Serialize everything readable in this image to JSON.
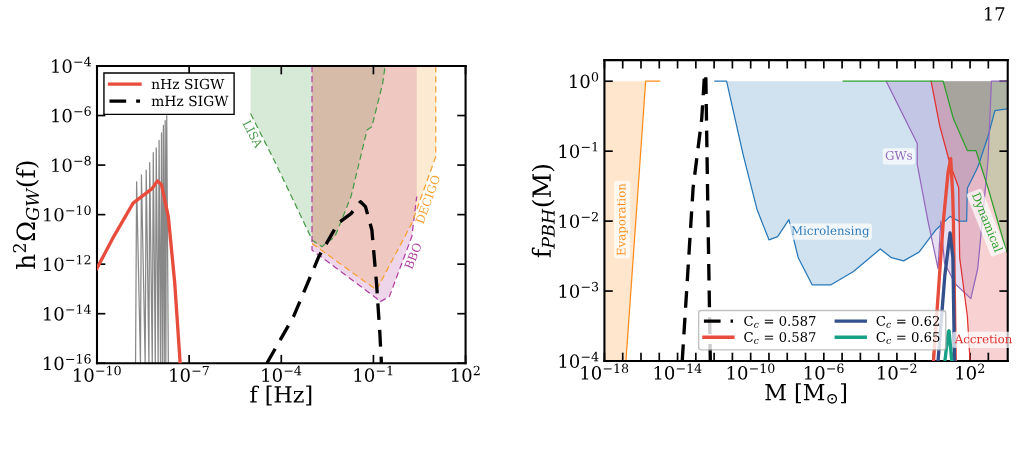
{
  "chart_data": [
    {
      "type": "line",
      "xlabel": "f [Hz]",
      "ylabel": "h$^{2}$Ω$_{GW}$(f)",
      "log": "xy",
      "grid": false,
      "legend": "top left",
      "xlim": [
        1e-10,
        100
      ],
      "ylim": [
        1e-16,
        0.0001
      ],
      "xticks": [
        {
          "value": 1e-10,
          "label": "10$^{−10}$"
        },
        {
          "value": 1e-07,
          "label": "10$^{−7}$"
        },
        {
          "value": 0.0001,
          "label": "10$^{−4}$"
        },
        {
          "value": 0.1,
          "label": "10$^{−1}$"
        },
        {
          "value": 100,
          "label": "10$^{2}$"
        }
      ],
      "yticks": [
        {
          "value": 1e-16,
          "label": "10$^{−16}$"
        },
        {
          "value": 1e-14,
          "label": "10$^{−14}$"
        },
        {
          "value": 1e-12,
          "label": "10$^{−12}$"
        },
        {
          "value": 1e-10,
          "label": "10$^{−10}$"
        },
        {
          "value": 1e-08,
          "label": "10$^{−8}$"
        },
        {
          "value": 1e-06,
          "label": "10$^{−6}$"
        },
        {
          "value": 0.0001,
          "label": "10$^{−4}$"
        }
      ],
      "series": [
        {
          "type": "line",
          "color": "#4a9a4a",
          "line_style": "dashed",
          "x": [
            1e-05,
            5.8e-05,
            0.00031,
            0.00102,
            0.0021,
            0.0056,
            0.0186,
            0.062,
            0.089,
            0.2,
            0.24
          ],
          "values": [
            1.2e-06,
            1.6e-08,
            2.1e-10,
            9.3e-12,
            5.1e-12,
            1.3e-11,
            5.4e-10,
            2.6e-07,
            3.5e-07,
            2e-05,
            0.0001
          ],
          "lower": [
            1.2e-06,
            1.6e-08,
            2.1e-10,
            9.3e-12,
            5.1e-12,
            1.3e-11,
            5.4e-10,
            2.6e-07,
            3.5e-07,
            2e-05,
            0.0001
          ],
          "upper": [
            0.0001,
            0.0001,
            0.0001,
            0.0001,
            0.0001,
            0.0001,
            0.0001,
            0.0001,
            0.0001,
            0.0001,
            0.0001
          ]
        },
        {
          "type": "line",
          "color": "#b040a0",
          "line_style": "dashed",
          "x": [
            0.001,
            0.001,
            0.126,
            0.162,
            0.33,
            1.78,
            2.57,
            2.57
          ],
          "values": [
            0.0001,
            3.7e-12,
            4.2e-14,
            3e-14,
            4.9e-14,
            1.3e-11,
            5.4e-10,
            null
          ],
          "lower": [
            0.0001,
            3.7e-12,
            4.2e-14,
            3e-14,
            4.9e-14,
            1.3e-11,
            5.4e-10,
            1e-07
          ],
          "upper": [
            0.0001,
            0.0001,
            0.0001,
            0.0001,
            0.0001,
            0.0001,
            0.0001,
            0.0001
          ]
        },
        {
          "type": "line",
          "color": "#f5a030",
          "line_style": "dashed",
          "x": [
            0.001,
            0.126,
            1.78,
            10.7,
            10.7
          ],
          "values": [
            6.9e-12,
            9.1e-14,
            4.5e-11,
            2.2e-08,
            0.0001
          ],
          "lower": [
            6.9e-12,
            9.1e-14,
            4.5e-11,
            2.2e-08,
            0.0001
          ],
          "upper": [
            0.0001,
            0.0001,
            0.0001,
            0.0001,
            0.0001
          ]
        },
        {
          "type": "line",
          "color": "#888888",
          "x": [
            1.8e-09,
            1.95e-09,
            2.6e-09,
            2.8e-09,
            3.7e-09,
            4e-09,
            4.9e-09,
            5.2e-09,
            6.3e-09,
            6.8e-09,
            7.9e-09,
            8.5e-09,
            9.8e-09,
            1.05e-08,
            1.17e-08,
            1.26e-08,
            1.35e-08,
            1.45e-08,
            1.55e-08,
            1.66e-08,
            1.74e-08,
            1.86e-08,
            2.1e-08
          ],
          "values": [
            1e-16,
            2.1e-09,
            1e-16,
            4e-09,
            1e-16,
            6.3e-09,
            1e-16,
            1.26e-08,
            1e-16,
            3.2e-08,
            1e-16,
            5e-08,
            1e-16,
            1e-07,
            1e-16,
            2e-07,
            1e-16,
            4e-07,
            1e-16,
            6.3e-07,
            1e-16,
            1e-06,
            1e-16
          ]
        },
        {
          "type": "line",
          "name": "nHz SIGW",
          "color": "#e74c3c",
          "line_style": "solid",
          "x": [
            1e-10,
            3.5e-10,
            1.5e-09,
            3.9e-09,
            6.3e-09,
            9.3e-09,
            1.26e-08,
            2.1e-08,
            3.4e-08,
            5.1e-08
          ],
          "values": [
            6.8e-13,
            1.3e-11,
            2.9e-10,
            7.2e-10,
            1.15e-09,
            2.3e-09,
            1.6e-09,
            8.3e-11,
            1.7e-13,
            1e-16
          ]
        },
        {
          "type": "line",
          "name": "mHz SIGW",
          "color": "#000000",
          "line_style": "dashed",
          "x": [
            3.4e-05,
            0.00025,
            0.00166,
            0.0071,
            0.0186,
            0.038,
            0.055,
            0.089,
            0.126,
            0.162,
            0.182
          ],
          "values": [
            1e-16,
            7.6e-15,
            2e-12,
            4.5e-11,
            1.1e-10,
            3.3e-10,
            2.1e-10,
            2.4e-11,
            1.7e-13,
            1.6e-15,
            1e-16
          ]
        }
      ],
      "annotations": [
        "LISA",
        "BBO",
        "DECIGO"
      ]
    },
    {
      "type": "line",
      "xlabel": "M [M$_{⊙}$]",
      "ylabel": "f$_{PBH}$(M)",
      "log": "xy",
      "grid": false,
      "legend": "bottom",
      "xlim": [
        1e-18,
        11500.0
      ],
      "ylim": [
        0.0001,
        2.0
      ],
      "xticks": [
        {
          "value": 1e-18,
          "label": "10$^{−18}$"
        },
        {
          "value": 1e-17,
          "label": null
        },
        {
          "value": 1e-16,
          "label": null
        },
        {
          "value": 1e-15,
          "label": null
        },
        {
          "value": 1e-14,
          "label": "10$^{−14}$"
        },
        {
          "value": 1e-13,
          "label": null
        },
        {
          "value": 1e-12,
          "label": null
        },
        {
          "value": 1e-11,
          "label": null
        },
        {
          "value": 1e-10,
          "label": "10$^{−10}$"
        },
        {
          "value": 1e-09,
          "label": null
        },
        {
          "value": 1e-08,
          "label": null
        },
        {
          "value": 1e-07,
          "label": null
        },
        {
          "value": 1e-06,
          "label": "10$^{−6}$"
        },
        {
          "value": 1e-05,
          "label": null
        },
        {
          "value": 0.0001,
          "label": null
        },
        {
          "value": 0.001,
          "label": null
        },
        {
          "value": 0.01,
          "label": "10$^{−2}$"
        },
        {
          "value": 0.1,
          "label": null
        },
        {
          "value": 1,
          "label": null
        },
        {
          "value": 10,
          "label": null
        },
        {
          "value": 100,
          "label": "10$^{2}$"
        },
        {
          "value": 1000,
          "label": null
        }
      ],
      "yticks": [
        {
          "value": 0.0001,
          "label": "10$^{−4}$"
        },
        {
          "value": 0.001,
          "label": "10$^{−3}$"
        },
        {
          "value": 0.01,
          "label": "10$^{−2}$"
        },
        {
          "value": 0.1,
          "label": "10$^{−1}$"
        },
        {
          "value": 1,
          "label": "10$^{0}$"
        }
      ],
      "series": [
        {
          "type": "line",
          "color": "#ff8c1a",
          "x": [
            1e-18,
            1.5e-17,
            1.8e-16,
            1.05e-15
          ],
          "values": [
            null,
            0.0001,
            1,
            1
          ],
          "lower": [
            0.0001,
            0.0001,
            1,
            1
          ],
          "upper": [
            1,
            1,
            1,
            1
          ]
        },
        {
          "type": "line",
          "color": "#2878b8",
          "x": [
            1.1e-12,
            4.8e-12,
            3.8e-11,
            2.2e-10,
            1e-09,
            3e-09,
            1.23e-08,
            4e-08,
            2.3e-07,
            2.5e-06,
            4.2e-05,
            0.00123,
            0.005,
            0.023,
            0.162,
            1.41,
            8.1,
            24,
            65,
            71,
            263,
            955,
            2290,
            8300,
            11000.0
          ],
          "values": [
            1,
            1,
            0.091,
            0.0148,
            0.0054,
            0.006,
            0.0105,
            0.003,
            0.00123,
            0.00123,
            0.0019,
            0.004,
            0.003,
            0.0027,
            0.0036,
            0.0076,
            0.0117,
            0.01,
            0.01,
            0.0295,
            0.059,
            0.162,
            0.38,
            0.4,
            0.4
          ],
          "lower": [
            1,
            1,
            0.091,
            0.0148,
            0.0054,
            0.006,
            0.0105,
            0.003,
            0.00123,
            0.00123,
            0.0019,
            0.004,
            0.003,
            0.0027,
            0.0036,
            0.0076,
            0.0117,
            0.01,
            0.01,
            0.0295,
            0.059,
            0.162,
            0.38,
            0.4,
            0.4
          ],
          "upper": [
            1,
            1,
            1,
            1,
            1,
            1,
            1,
            1,
            1,
            1,
            1,
            1,
            1,
            1,
            1,
            1,
            1,
            1,
            1,
            1,
            1,
            1,
            1,
            1,
            1
          ]
        },
        {
          "type": "line",
          "color": "#9467bd",
          "x": [
            0.0026,
            0.068,
            0.129,
            0.129,
            0.5,
            1.78,
            2.5,
            4.0,
            15.8,
            110,
            263,
            955,
            1480,
            11000.0
          ],
          "values": [
            1,
            0.18,
            0.129,
            0.065,
            0.01,
            0.0021,
            0.01,
            0.0025,
            0.00126,
            0.00078,
            0.0021,
            0.072,
            1,
            1
          ],
          "lower": [
            1,
            0.18,
            0.129,
            0.065,
            0.01,
            0.0021,
            0.01,
            0.0025,
            0.00126,
            0.00078,
            0.0021,
            0.072,
            1,
            1
          ],
          "upper": [
            1,
            1,
            1,
            1,
            1,
            1,
            1,
            1,
            1,
            1,
            1,
            1,
            1,
            1
          ]
        },
        {
          "type": "line",
          "color": "#e03030",
          "x": [
            0.74,
            2.2,
            8.1,
            24,
            27,
            71,
            100,
            11000.0
          ],
          "values": [
            1,
            0.23,
            0.065,
            0.03,
            0.003,
            0.00044,
            0.0001,
            0.0001
          ],
          "lower": [
            1,
            0.23,
            0.065,
            0.03,
            0.003,
            0.00044,
            0.0001,
            0.0001
          ],
          "upper": [
            1,
            1,
            1,
            1,
            1,
            1,
            1,
            1
          ]
        },
        {
          "type": "line",
          "color": "#2ca02c",
          "x": [
            1.15e-05,
            3.4,
            12.3,
            71,
            209,
            955,
            8300,
            11000.0
          ],
          "values": [
            1,
            1,
            0.29,
            0.102,
            0.102,
            0.03,
            0.0043,
            0.0035
          ],
          "lower": [
            1,
            1,
            0.29,
            0.102,
            0.102,
            0.03,
            0.0043,
            0.0035
          ],
          "upper": [
            1,
            1,
            1,
            1,
            1,
            1,
            1,
            1
          ]
        },
        {
          "name": "C$_{c}$ = 0.587",
          "color": "#000000",
          "line_style": "dashed",
          "x": [
            1.8e-14,
            7.1e-14,
            2.1e-13,
            3e-13,
            3.5e-13,
            4.5e-13,
            6.2e-13
          ],
          "values": [
            0.0001,
            0.03,
            0.29,
            1.26,
            1.3,
            0.017,
            0.0001
          ]
        },
        {
          "name": "C$_{c}$ = 0.587",
          "color": "#e74c3c",
          "line_style": "solid",
          "x": [
            1.0,
            3.4,
            6.3,
            8.7,
            11.2,
            12.3,
            15.5
          ],
          "values": [
            0.0001,
            0.0095,
            0.05,
            0.078,
            0.025,
            0.01,
            0.0001
          ]
        },
        {
          "name": "C$_{c}$ = 0.62",
          "color": "#34508c",
          "line_style": "solid",
          "x": [
            1.78,
            4.2,
            8.1,
            11.5,
            14.1
          ],
          "values": [
            0.0001,
            0.0017,
            0.0068,
            0.003,
            0.0001
          ]
        },
        {
          "name": "C$_{c}$ = 0.65",
          "color": "#16a085",
          "line_style": "solid",
          "x": [
            4.2,
            6.5,
            7.1,
            10
          ],
          "values": [
            0.0001,
            0.00026,
            0.00027,
            0.0001
          ]
        }
      ],
      "annotations": [
        "Evaporation",
        "Microlensing",
        "GWs",
        "Dynamical",
        "Accretion",
        "17"
      ]
    }
  ]
}
